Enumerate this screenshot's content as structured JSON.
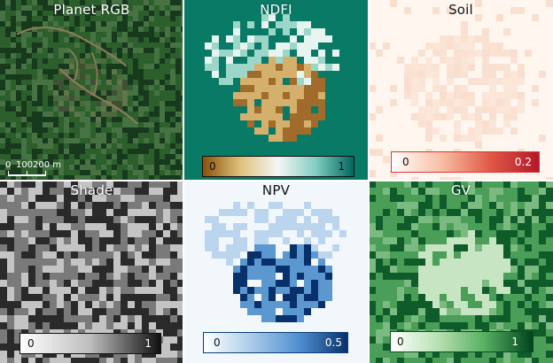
{
  "panels": [
    {
      "title": "Planet RGB",
      "scale": {
        "zero": "0",
        "hundred": "100",
        "two_hundred": "200 m"
      },
      "colors": {
        "dark": "#173a1d",
        "mid": "#2d5f2d",
        "light": "#467244",
        "clearing": "#8d7a58"
      }
    },
    {
      "title": "NDFI",
      "legend": {
        "min": "0",
        "max": "1"
      },
      "colors": {
        "background": "#087a66",
        "brown": "#a06b2b",
        "tan": "#d5b06c",
        "pale": "#e6f5ef"
      }
    },
    {
      "title": "Soil",
      "legend": {
        "min": "0",
        "max": "0.2"
      },
      "colors": {
        "background": "#fff7ef",
        "peach": "#f8dbc9",
        "red": "#b2182b"
      }
    },
    {
      "title": "Shade",
      "legend": {
        "min": "0",
        "max": "1"
      },
      "colors": {
        "dark": "#2a2a2a",
        "mid": "#7a7a7a",
        "light": "#c4c4c4"
      }
    },
    {
      "title": "NPV",
      "legend": {
        "min": "0",
        "max": "0.5"
      },
      "colors": {
        "background": "#f2f7fc",
        "light": "#bcd5ee",
        "mid": "#5b98d0",
        "dark": "#08306b"
      }
    },
    {
      "title": "GV",
      "legend": {
        "min": "0",
        "max": "1"
      },
      "colors": {
        "dark": "#0f5b2a",
        "mid": "#4b9e58",
        "light": "#b6ddb0"
      }
    }
  ]
}
